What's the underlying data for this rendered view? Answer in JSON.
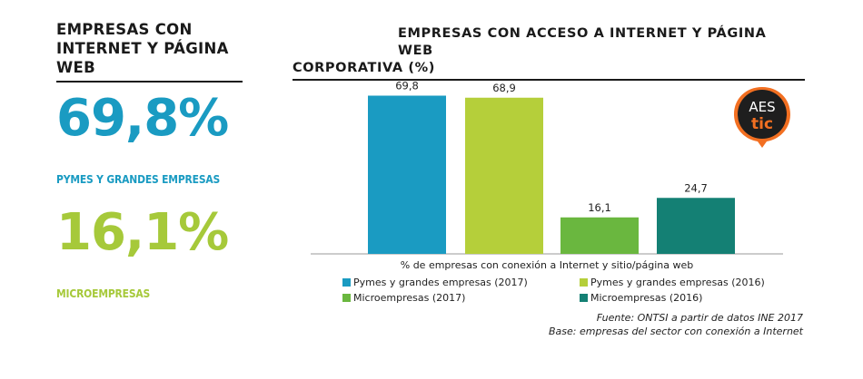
{
  "left": {
    "title": "EMPRESAS CON INTERNET Y PÁGINA WEB",
    "stat1": {
      "value": "69,8%",
      "color": "#1a9bc2",
      "label": "PYMES Y GRANDES EMPRESAS"
    },
    "stat2": {
      "value": "16,1%",
      "color": "#a6c93a",
      "label": "MICROEMPRESAS"
    }
  },
  "logo": {
    "line1": "AES",
    "line2": "tic",
    "color": "#f26f21",
    "icon": "aestic-logo-icon"
  },
  "chart_data": {
    "type": "bar",
    "title_line1": "EMPRESAS CON ACCESO A INTERNET Y PÁGINA WEB",
    "title_line2": "CORPORATIVA (%)",
    "xlabel": "% de empresas con conexión a Internet y sitio/página web",
    "ylabel": "",
    "ylim": [
      0,
      80
    ],
    "grid": false,
    "legend_position": "bottom",
    "series": [
      {
        "name": "Pymes y grandes empresas (2017)",
        "value": 69.8,
        "label": "69,8",
        "color": "#1a9bc2"
      },
      {
        "name": "Pymes y grandes empresas (2016)",
        "value": 68.9,
        "label": "68,9",
        "color": "#b5cf3a"
      },
      {
        "name": "Microempresas (2017)",
        "value": 16.1,
        "label": "16,1",
        "color": "#6ab73f"
      },
      {
        "name": "Microempresas (2016)",
        "value": 24.7,
        "label": "24,7",
        "color": "#148074"
      }
    ]
  },
  "source": {
    "line1": "Fuente: ONTSI a partir de datos INE 2017",
    "line2": "Base: empresas del sector con conexión a Internet"
  }
}
